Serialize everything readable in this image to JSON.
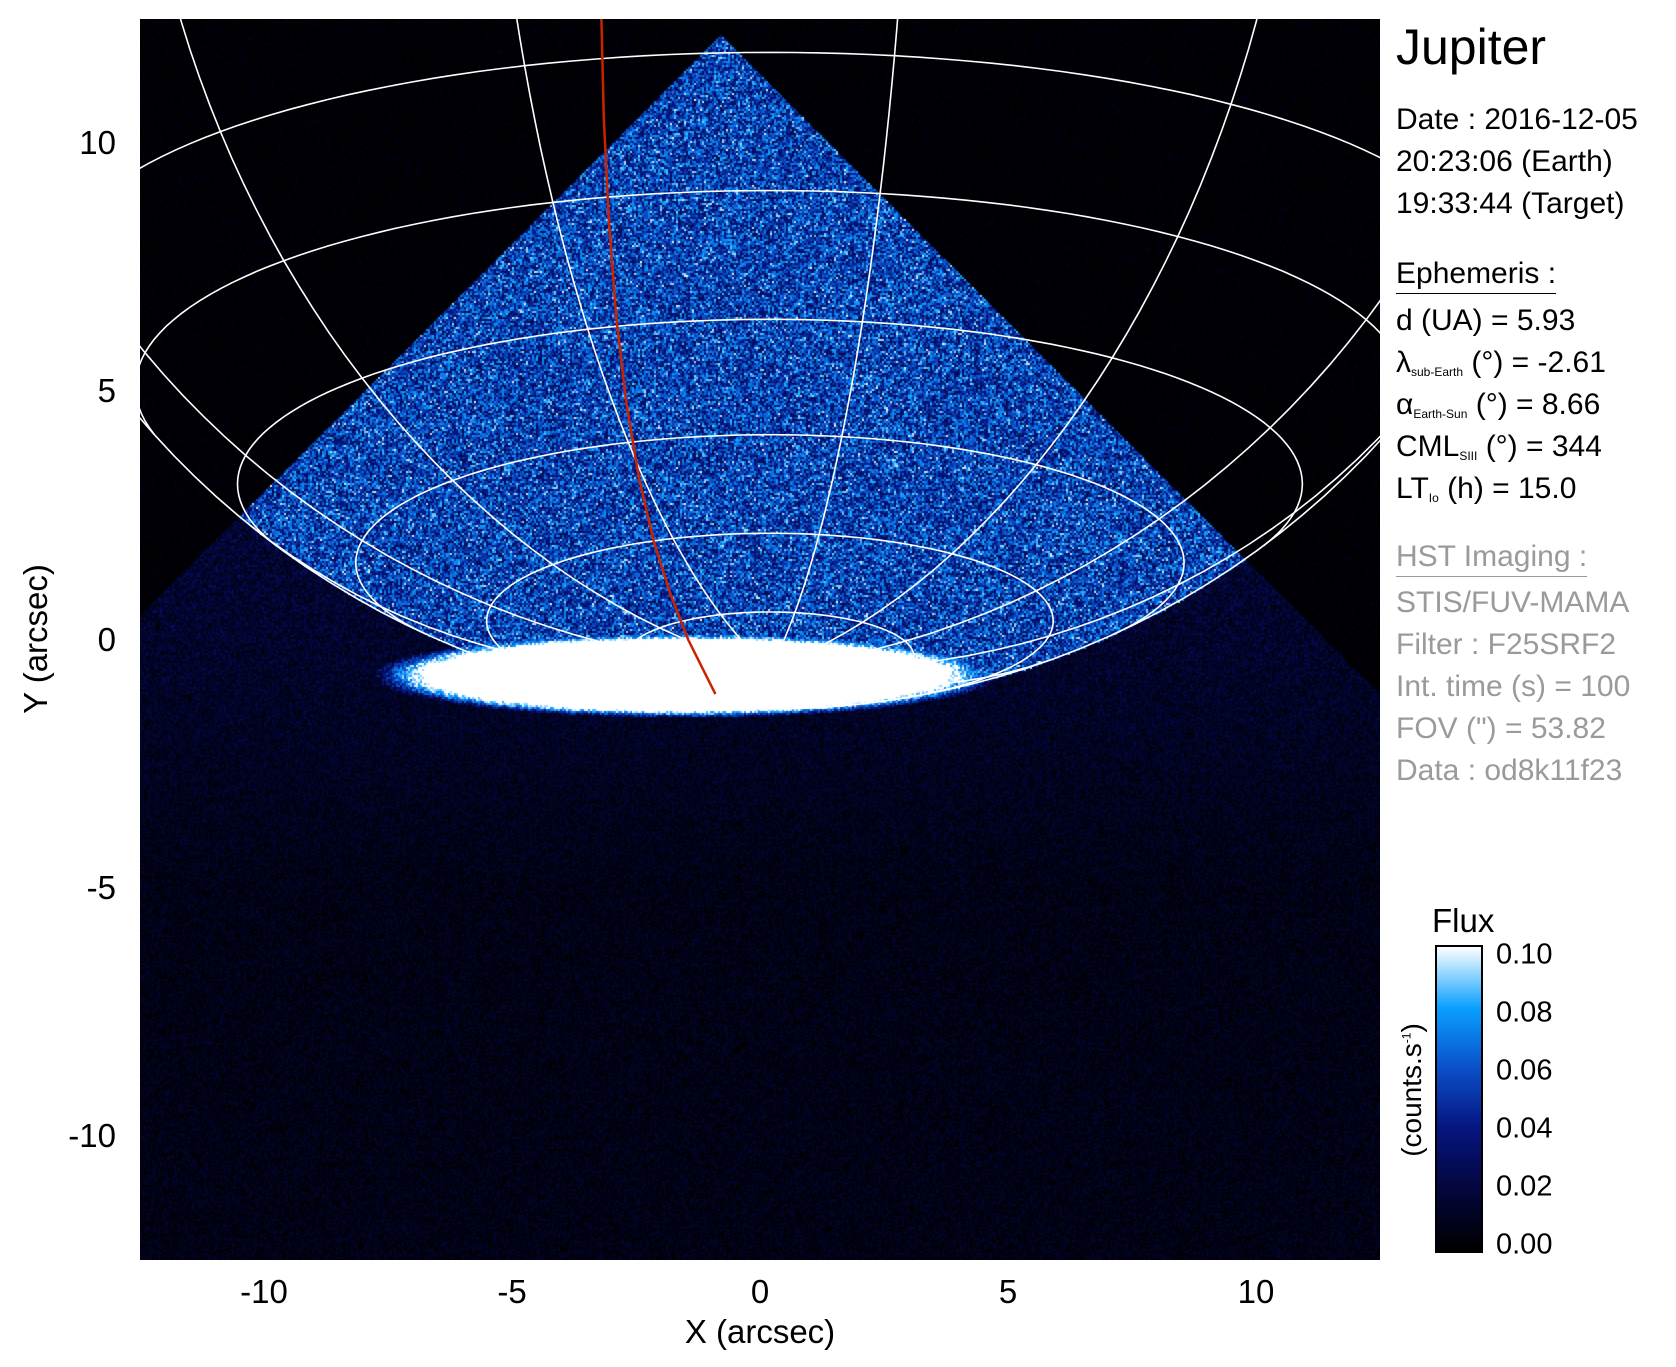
{
  "chart_data": {
    "type": "heatmap",
    "title": "Jupiter",
    "xlabel": "X (arcsec)",
    "ylabel": "Y (arcsec)",
    "xlim": [
      -12.5,
      12.5
    ],
    "ylim": [
      -12.5,
      12.5
    ],
    "xticks": [
      -10,
      -5,
      0,
      5,
      10
    ],
    "yticks": [
      -10,
      -5,
      0,
      5,
      10
    ],
    "xtick_labels": [
      "-10",
      "-5",
      "0",
      "5",
      "10"
    ],
    "ytick_labels": [
      "-10",
      "-5",
      "0",
      "5",
      "10"
    ],
    "grid": "planetographic latitude/longitude grid (white)",
    "grid_color": "#ffffff",
    "overlay_line_color": "#cc2200",
    "overlay_line": {
      "x": [
        -3.2,
        -3.15,
        -3.05,
        -2.9,
        -2.7,
        -2.45,
        -2.15,
        -1.8,
        -1.45,
        -1.15,
        -0.9
      ],
      "y": [
        12.6,
        10.5,
        8.5,
        6.5,
        4.8,
        3.3,
        2.0,
        0.9,
        0.0,
        -0.6,
        -1.1
      ]
    },
    "colorbar": {
      "title": "Flux",
      "unit": "(counts.s",
      "unit_sup": "-1",
      "unit_close": ")",
      "range": [
        0.0,
        0.1
      ],
      "ticks": [
        "0.10",
        "0.08",
        "0.06",
        "0.04",
        "0.02",
        "0.00"
      ],
      "colors": [
        "#000000",
        "#03063a",
        "#06147e",
        "#0a4fc8",
        "#0aa0ff",
        "#ffffff"
      ]
    }
  },
  "info": {
    "title": "Jupiter",
    "date": "Date : 2016-12-05",
    "time_earth": "20:23:06 (Earth)",
    "time_target": "19:33:44 (Target)",
    "ephemeris_header": "Ephemeris :",
    "distance": "d (UA)    = 5.93",
    "lambda_sym": "λ",
    "lambda_sub": "sub-Earth",
    "lambda_val": " (°) = -2.61",
    "alpha_sym": "α",
    "alpha_sub": "Earth-Sun",
    "alpha_val": " (°) = 8.66",
    "cml_sym": "CML",
    "cml_sub": "SIII",
    "cml_val": " (°) = 344",
    "lt_sym": "LT",
    "lt_sub": "Io",
    "lt_val": " (h) = 15.0",
    "hst_header": "HST Imaging :",
    "instrument": "STIS/FUV-MAMA",
    "filter": "Filter : F25SRF2",
    "int_time": "Int. time (s) = 100",
    "fov": "FOV (\") = 53.82",
    "dataset": "Data : od8k11f23"
  }
}
